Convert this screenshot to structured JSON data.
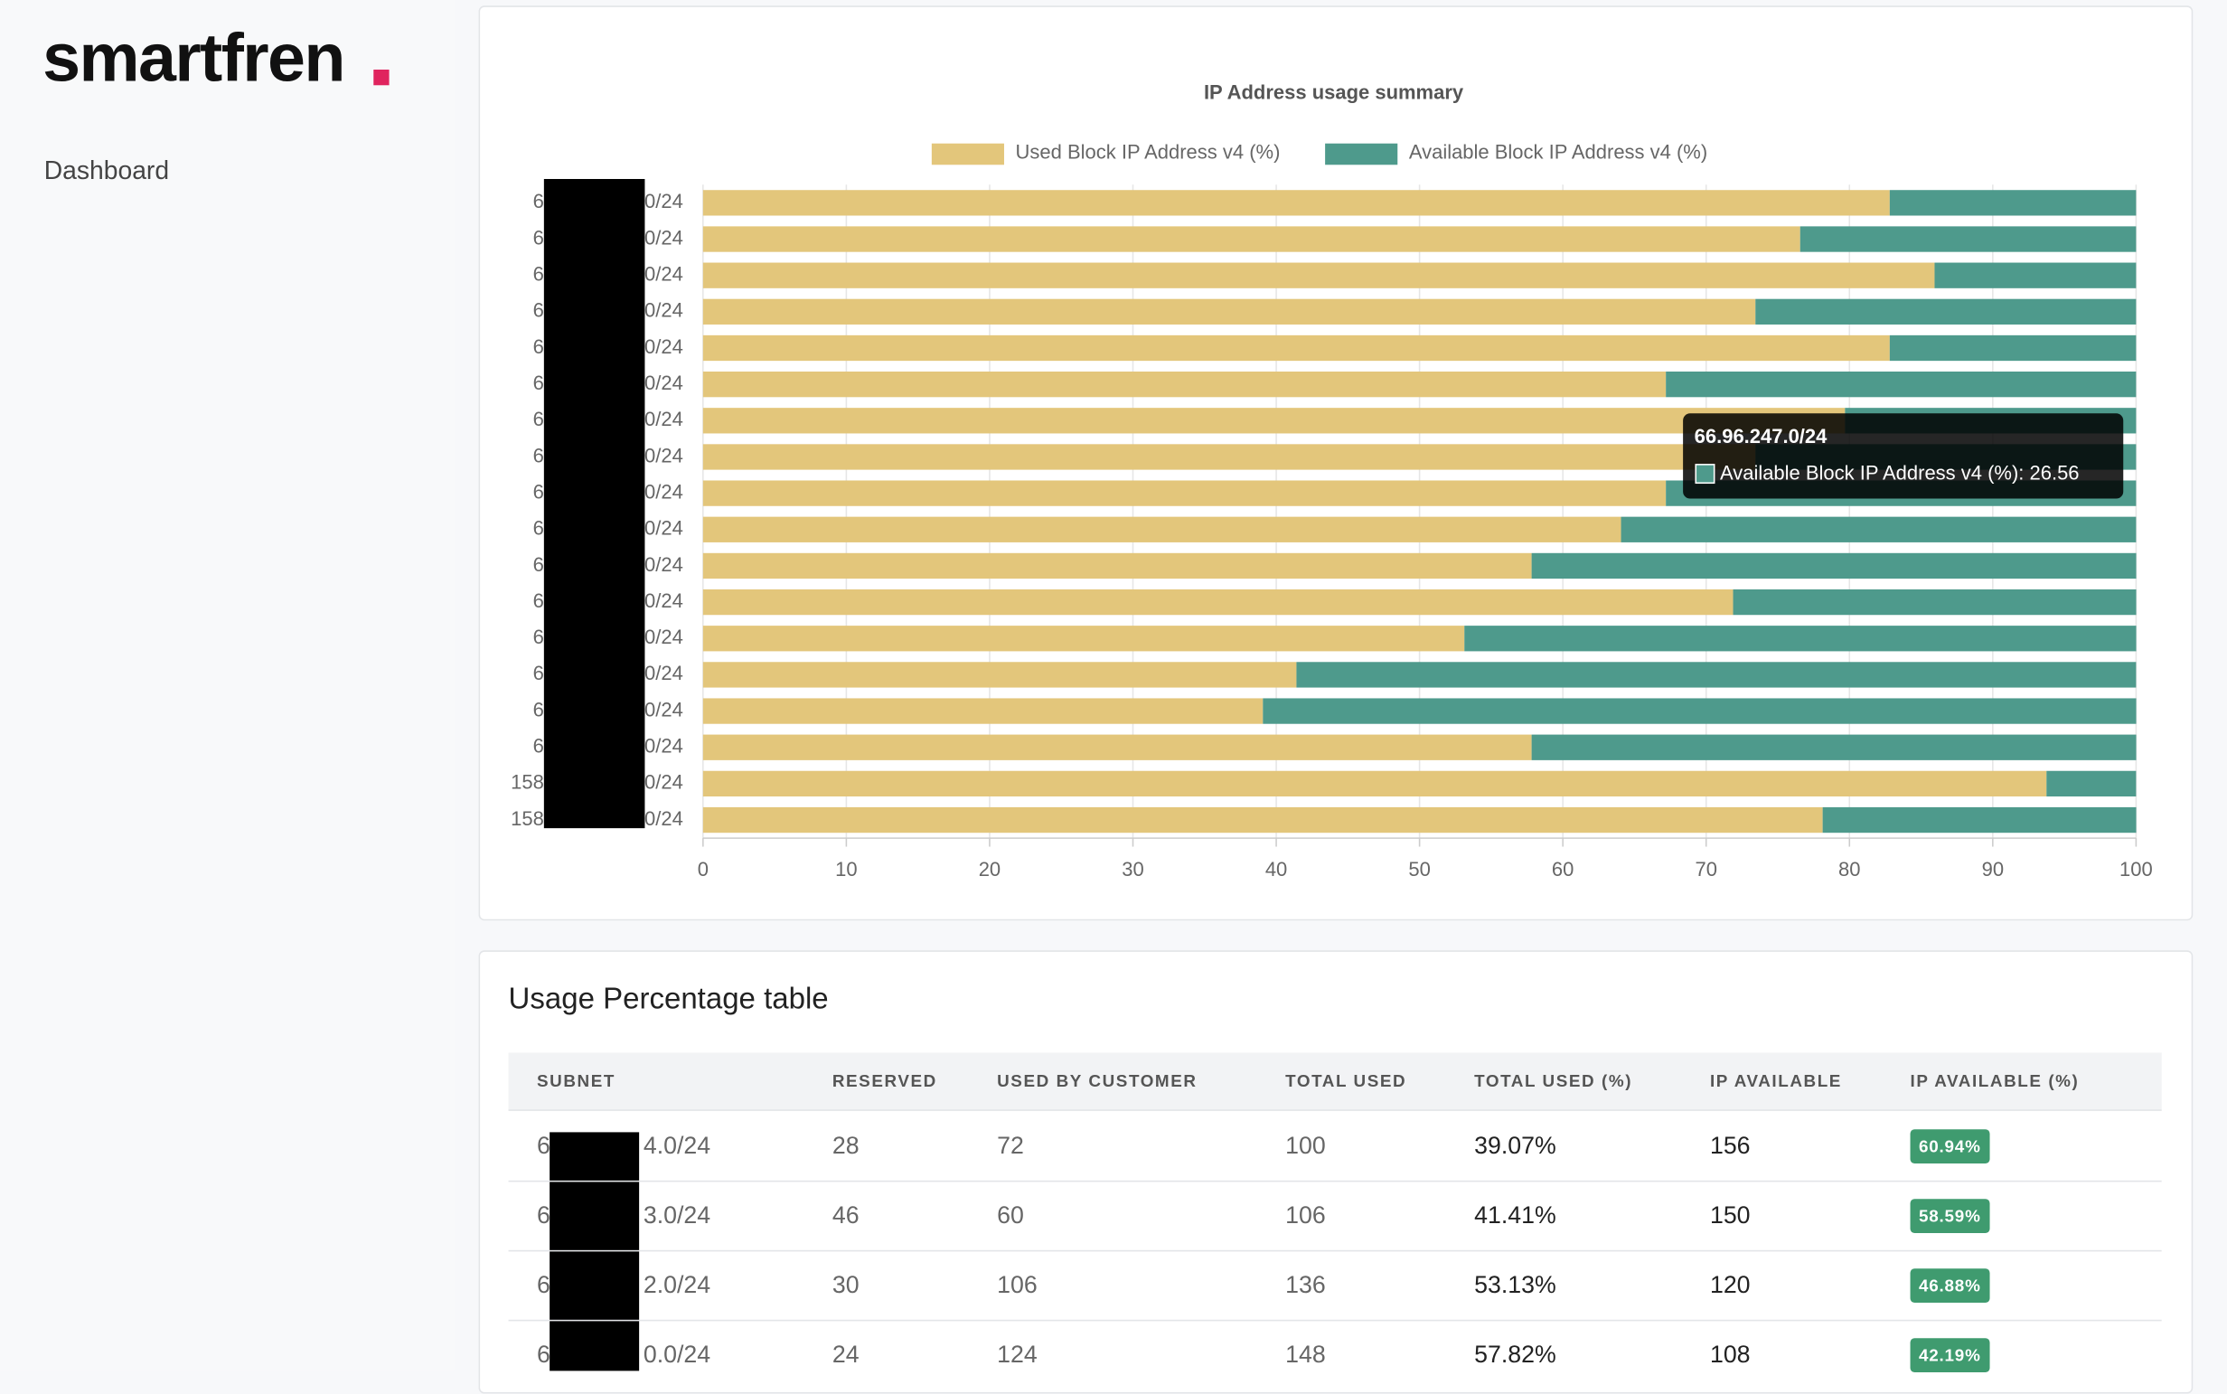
{
  "sidebar": {
    "logo": "smartfren",
    "nav": [
      "Dashboard"
    ]
  },
  "chart_data": {
    "type": "bar",
    "orientation": "horizontal",
    "stacked": true,
    "title": "IP Address usage summary",
    "category_prefixes": [
      "6",
      "6",
      "6",
      "6",
      "6",
      "6",
      "6",
      "6",
      "6",
      "6",
      "6",
      "6",
      "6",
      "6",
      "6",
      "6",
      "158",
      "158"
    ],
    "category_suffixes": [
      "0/24",
      "0/24",
      "0/24",
      "0/24",
      "0/24",
      "0/24",
      "0/24",
      "0/24",
      "0/24",
      "0/24",
      "0/24",
      "0/24",
      "0/24",
      "0/24",
      "0/24",
      "0/24",
      "0/24",
      "0/24"
    ],
    "series": [
      {
        "name": "Used Block IP Address v4 (%)",
        "color": "#e3c67b",
        "values": [
          82.81,
          76.56,
          85.94,
          73.44,
          82.81,
          67.19,
          79.69,
          73.44,
          67.19,
          64.06,
          57.82,
          71.88,
          53.13,
          41.41,
          39.07,
          57.82,
          93.75,
          78.13
        ]
      },
      {
        "name": "Available Block IP Address v4 (%)",
        "color": "#4e9a8c",
        "values": [
          17.19,
          23.44,
          14.06,
          26.56,
          17.19,
          32.81,
          20.31,
          26.56,
          32.81,
          35.94,
          42.19,
          28.13,
          46.88,
          58.59,
          60.94,
          42.19,
          6.25,
          21.88
        ]
      }
    ],
    "xlim": [
      0,
      100
    ],
    "xticks": [
      0,
      10,
      20,
      30,
      40,
      50,
      60,
      70,
      80,
      90,
      100
    ],
    "grid": true,
    "legend": "top",
    "tooltip": {
      "title": "66.96.247.0/24",
      "label": "Available Block IP Address v4 (%): 26.56"
    }
  },
  "table": {
    "title": "Usage Percentage table",
    "columns": [
      "SUBNET",
      "RESERVED",
      "USED BY CUSTOMER",
      "TOTAL USED",
      "TOTAL USED (%)",
      "IP AVAILABLE",
      "IP AVAILABLE (%)"
    ],
    "rows": [
      {
        "subnet_prefix": "6",
        "subnet_suffix": "4.0/24",
        "reserved": 28,
        "used_by_customer": 72,
        "total_used": 100,
        "total_used_pct": "39.07%",
        "ip_available": 156,
        "ip_available_pct": "60.94%"
      },
      {
        "subnet_prefix": "6",
        "subnet_suffix": "3.0/24",
        "reserved": 46,
        "used_by_customer": 60,
        "total_used": 106,
        "total_used_pct": "41.41%",
        "ip_available": 150,
        "ip_available_pct": "58.59%"
      },
      {
        "subnet_prefix": "6",
        "subnet_suffix": "2.0/24",
        "reserved": 30,
        "used_by_customer": 106,
        "total_used": 136,
        "total_used_pct": "53.13%",
        "ip_available": 120,
        "ip_available_pct": "46.88%"
      },
      {
        "subnet_prefix": "6",
        "subnet_suffix": "0.0/24",
        "reserved": 24,
        "used_by_customer": 124,
        "total_used": 148,
        "total_used_pct": "57.82%",
        "ip_available": 108,
        "ip_available_pct": "42.19%"
      }
    ]
  }
}
